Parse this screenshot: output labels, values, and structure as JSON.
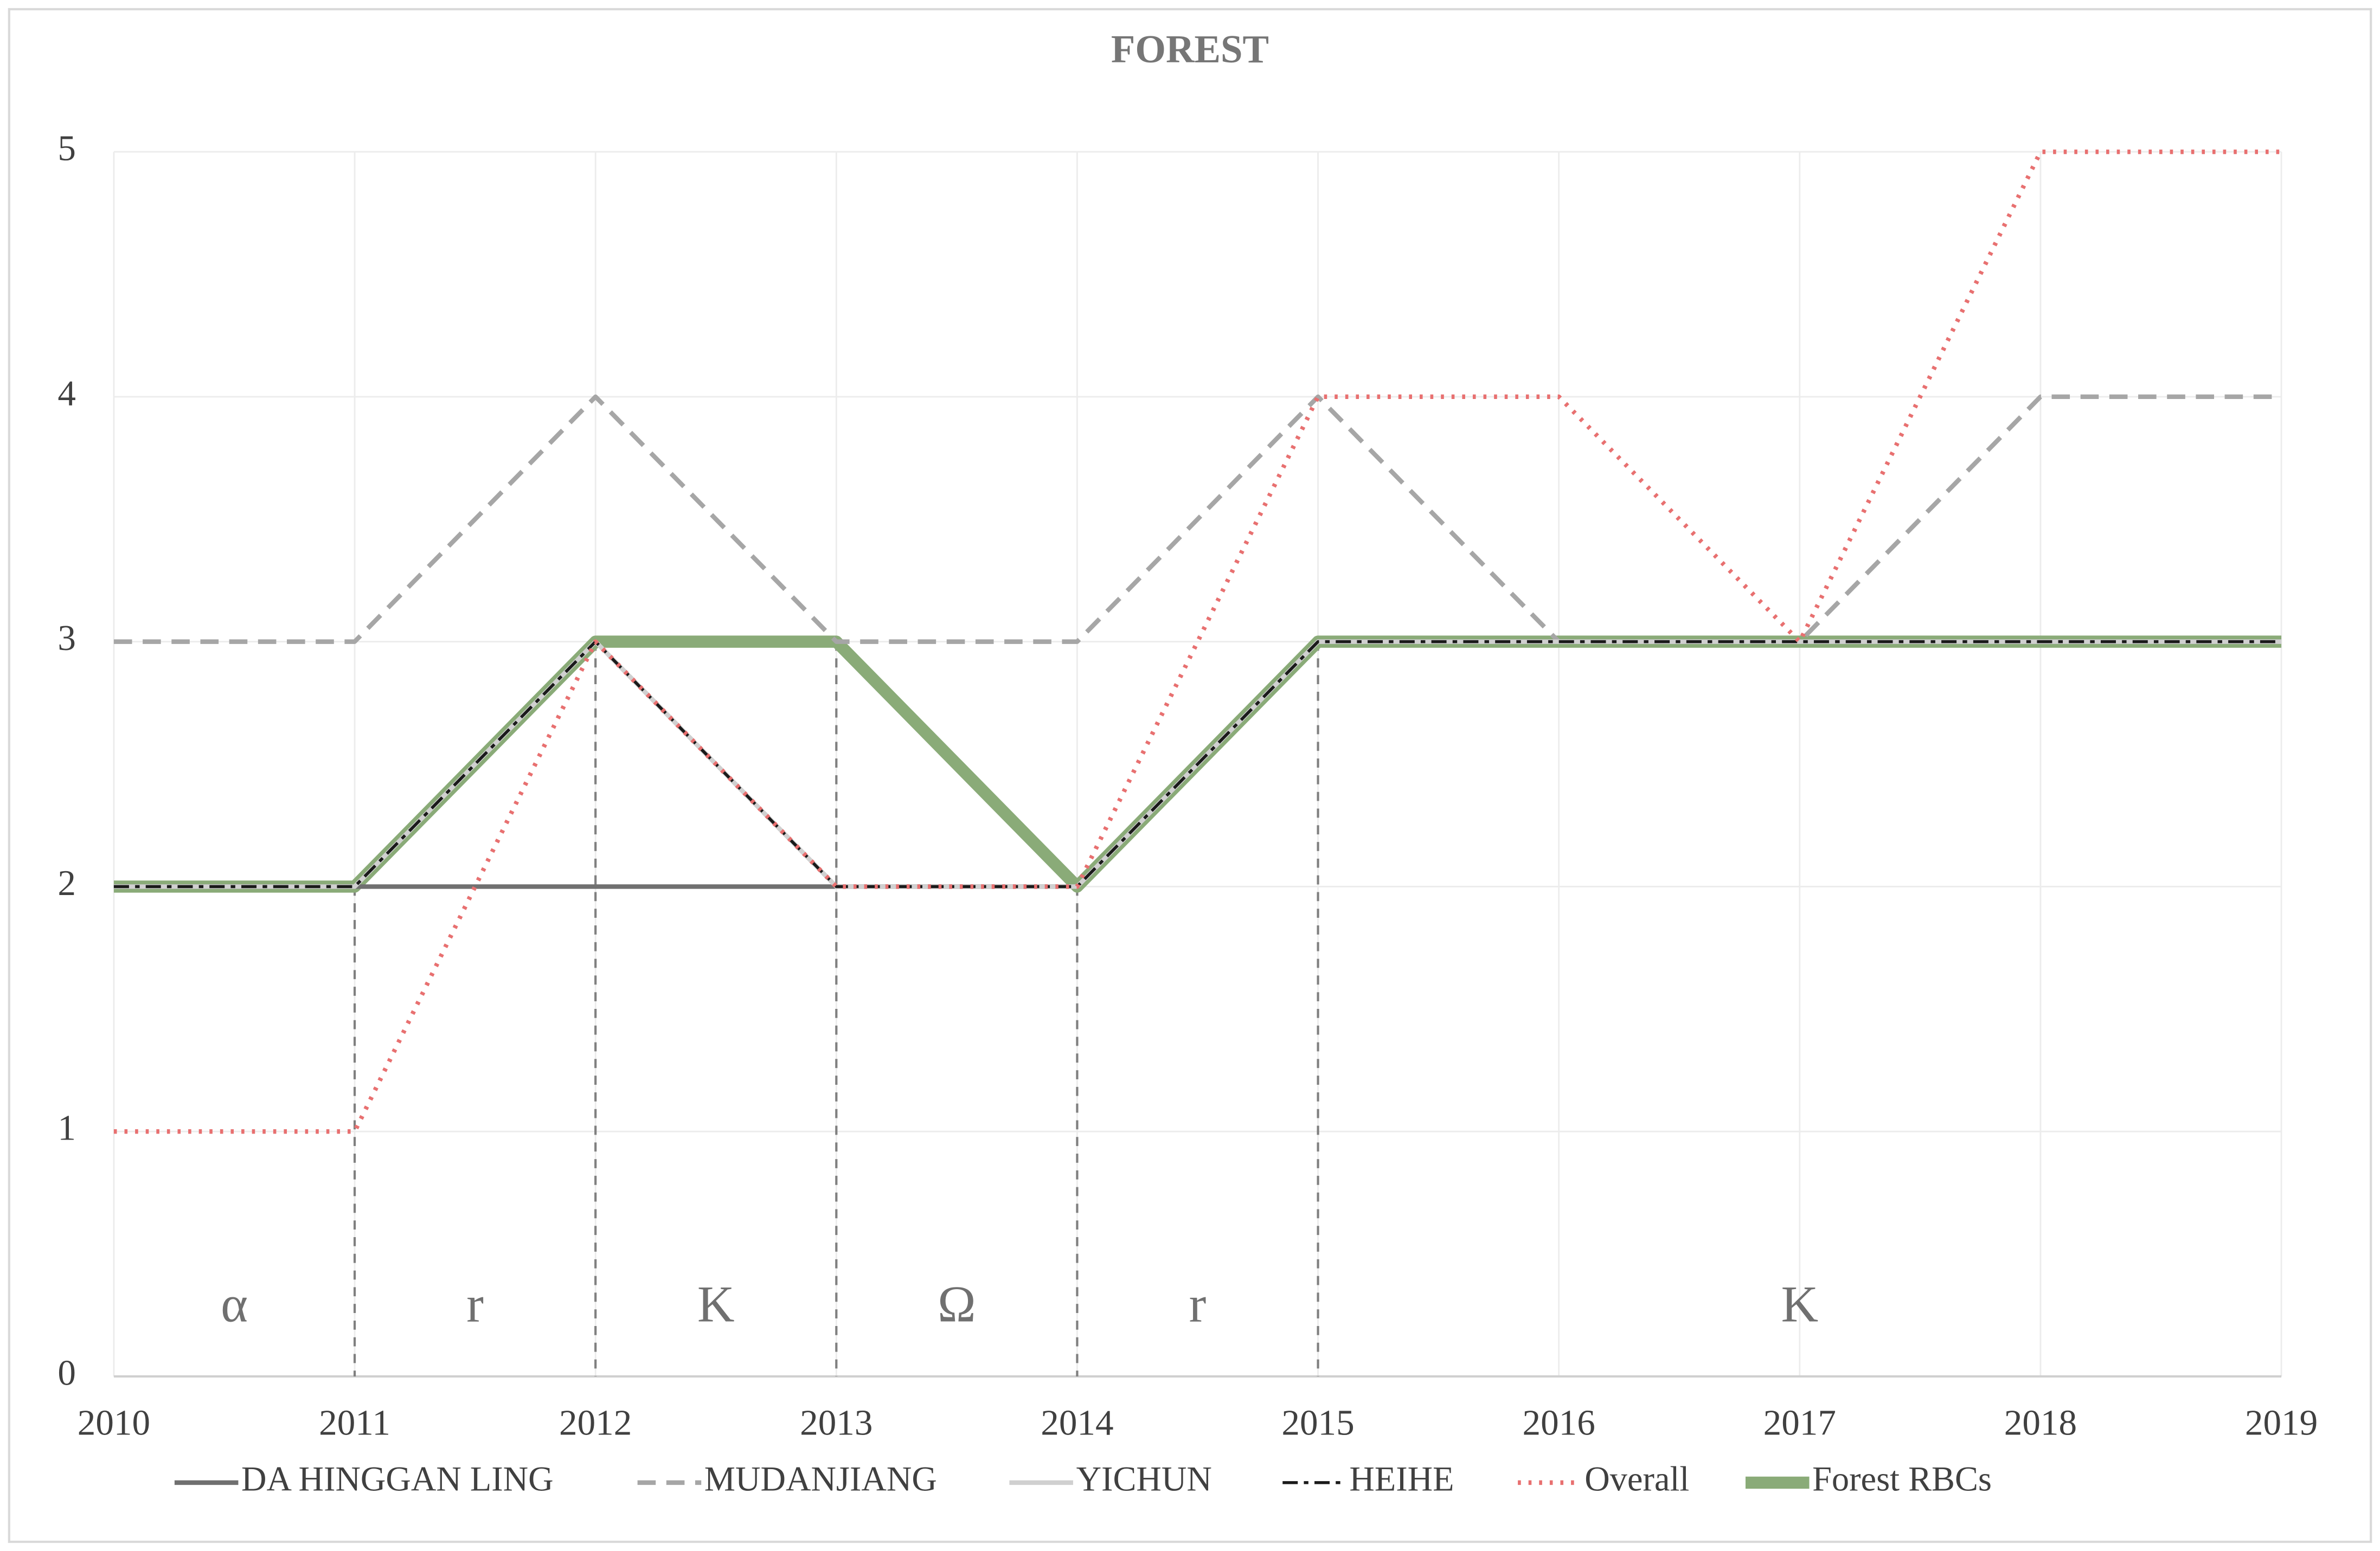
{
  "chart_data": {
    "type": "line",
    "title": "FOREST",
    "x": [
      2010,
      2011,
      2012,
      2013,
      2014,
      2015,
      2016,
      2017,
      2018,
      2019
    ],
    "xlim": [
      2010,
      2019
    ],
    "xticks": [
      2010,
      2011,
      2012,
      2013,
      2014,
      2015,
      2016,
      2017,
      2018,
      2019
    ],
    "ylim": [
      0,
      5
    ],
    "yticks": [
      0,
      1,
      2,
      3,
      4,
      5
    ],
    "grid": true,
    "series": [
      {
        "name": "DA HINGGAN LING",
        "color": "#707070",
        "width": 3,
        "dash": "none",
        "values": [
          2,
          2,
          2,
          2,
          2,
          3,
          3,
          3,
          3,
          3
        ]
      },
      {
        "name": "MUDANJIANG",
        "color": "#a6a6a6",
        "width": 3,
        "dash": "12 7",
        "values": [
          3,
          3,
          4,
          3,
          3,
          4,
          3,
          3,
          4,
          4
        ]
      },
      {
        "name": "YICHUN",
        "color": "#d0d0d0",
        "width": 3,
        "dash": "none",
        "values": [
          2,
          2,
          3,
          2,
          2,
          3,
          3,
          3,
          3,
          3
        ]
      },
      {
        "name": "HEIHE",
        "color": "#1a1a1a",
        "width": 2,
        "dash": "10 4 3 4",
        "values": [
          2,
          2,
          3,
          2,
          2,
          3,
          3,
          3,
          3,
          3
        ]
      },
      {
        "name": "Overall",
        "color": "#e87070",
        "width": 3,
        "dash": "2 5",
        "values": [
          1,
          1,
          3,
          2,
          2,
          4,
          4,
          3,
          5,
          5
        ]
      },
      {
        "name": "Forest RBCs",
        "color": "#8aab78",
        "width": 8,
        "dash": "none",
        "values": [
          2,
          2,
          3,
          3,
          2,
          3,
          3,
          3,
          3,
          3
        ]
      }
    ],
    "phases": [
      {
        "label": "α",
        "start": 2010,
        "end": 2011
      },
      {
        "label": "r",
        "start": 2011,
        "end": 2012
      },
      {
        "label": "K",
        "start": 2012,
        "end": 2013
      },
      {
        "label": "Ω",
        "start": 2013,
        "end": 2014
      },
      {
        "label": "r",
        "start": 2014,
        "end": 2015
      },
      {
        "label": "K",
        "start": 2015,
        "end": 2019
      }
    ]
  }
}
